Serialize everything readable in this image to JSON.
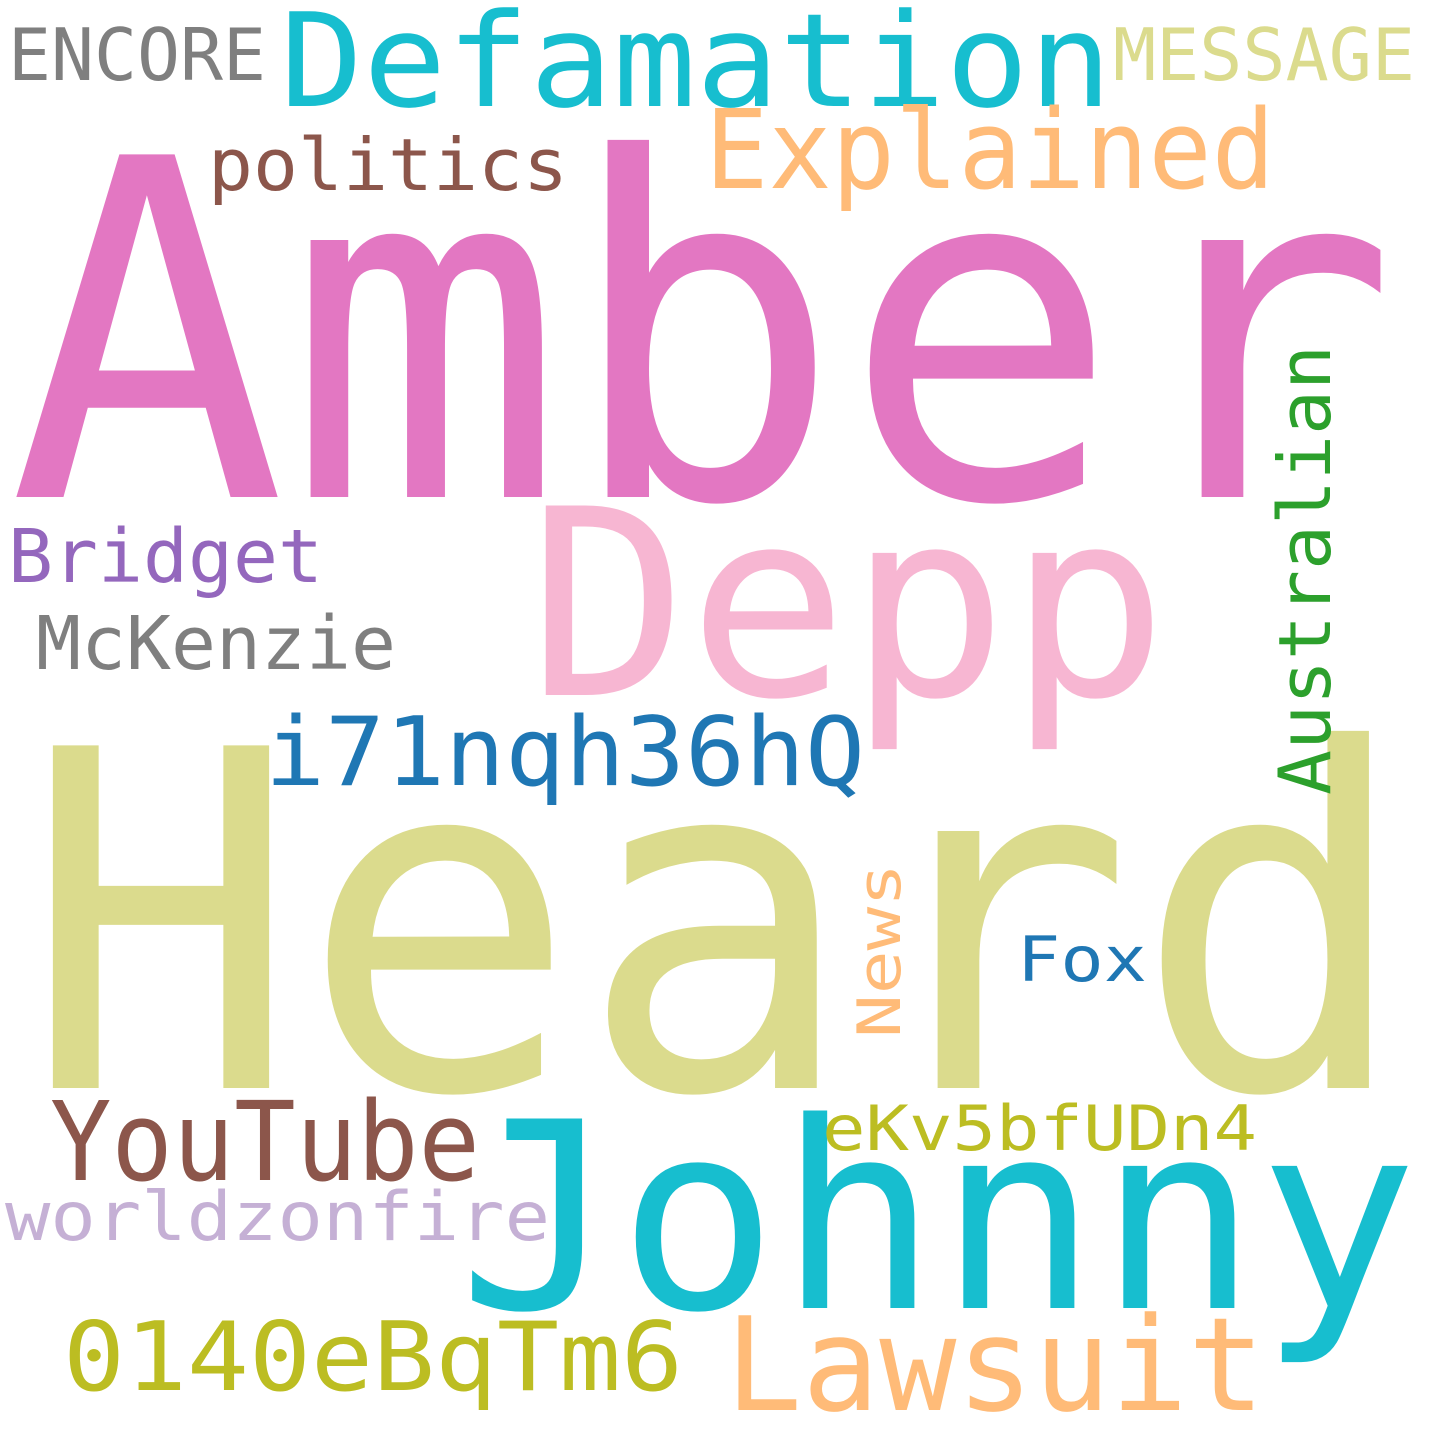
{
  "words": [
    {
      "id": "amber",
      "text": "Amber",
      "color": "#e377c2",
      "orientation": "horizontal"
    },
    {
      "id": "heard",
      "text": "Heard",
      "color": "#dbdb8d",
      "orientation": "horizontal"
    },
    {
      "id": "depp",
      "text": "Depp",
      "color": "#f7b6d2",
      "orientation": "horizontal"
    },
    {
      "id": "johnny",
      "text": "Johnny",
      "color": "#17becf",
      "orientation": "horizontal"
    },
    {
      "id": "defamation",
      "text": "Defamation",
      "color": "#17becf",
      "orientation": "horizontal"
    },
    {
      "id": "explained",
      "text": "Explained",
      "color": "#ffbb78",
      "orientation": "horizontal"
    },
    {
      "id": "lawsuit",
      "text": "Lawsuit",
      "color": "#ffbb78",
      "orientation": "horizontal"
    },
    {
      "id": "youtube",
      "text": "YouTube",
      "color": "#8c564b",
      "orientation": "horizontal"
    },
    {
      "id": "code-0140",
      "text": "0140eBqTm6",
      "color": "#bcbd22",
      "orientation": "horizontal"
    },
    {
      "id": "code-i71",
      "text": "i71nqh36hQ",
      "color": "#1f77b4",
      "orientation": "horizontal"
    },
    {
      "id": "australian",
      "text": "Australian",
      "color": "#2ca02c",
      "orientation": "vertical"
    },
    {
      "id": "bridget",
      "text": "Bridget",
      "color": "#9467bd",
      "orientation": "horizontal"
    },
    {
      "id": "mckenzie",
      "text": "McKenzie",
      "color": "#7f7f7f",
      "orientation": "horizontal"
    },
    {
      "id": "politics",
      "text": "politics",
      "color": "#8c564b",
      "orientation": "horizontal"
    },
    {
      "id": "encore",
      "text": "ENCORE",
      "color": "#7f7f7f",
      "orientation": "horizontal"
    },
    {
      "id": "message",
      "text": "MESSAGE",
      "color": "#dbdb8d",
      "orientation": "horizontal"
    },
    {
      "id": "news",
      "text": "News",
      "color": "#ffbb78",
      "orientation": "vertical"
    },
    {
      "id": "fox",
      "text": "Fox",
      "color": "#1f77b4",
      "orientation": "horizontal"
    },
    {
      "id": "code-ekv",
      "text": "eKv5bfUDn4",
      "color": "#bcbd22",
      "orientation": "horizontal"
    },
    {
      "id": "worldzonfire",
      "text": "worldzonfire",
      "color": "#c5b0d5",
      "orientation": "horizontal"
    }
  ]
}
